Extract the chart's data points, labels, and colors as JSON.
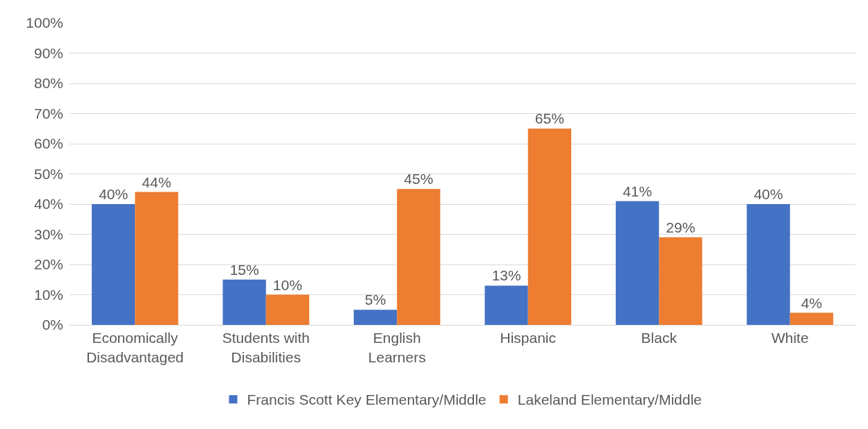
{
  "chart_data": {
    "type": "bar",
    "categories": [
      "Economically Disadvantaged",
      "Students with Disabilities",
      "English Learners",
      "Hispanic",
      "Black",
      "White"
    ],
    "series": [
      {
        "name": "Francis Scott Key Elementary/Middle",
        "color": "#4472c4",
        "values": [
          40,
          15,
          5,
          13,
          41,
          40
        ],
        "value_labels": [
          "40%",
          "15%",
          "5%",
          "13%",
          "41%",
          "40%"
        ]
      },
      {
        "name": "Lakeland Elementary/Middle",
        "color": "#ed7d31",
        "values": [
          44,
          10,
          45,
          65,
          29,
          4
        ],
        "value_labels": [
          "44%",
          "10%",
          "45%",
          "65%",
          "29%",
          "4%"
        ]
      }
    ],
    "ylim": [
      0,
      100
    ],
    "yticks": [
      {
        "value": 0,
        "label": "0%"
      },
      {
        "value": 10,
        "label": "10%"
      },
      {
        "value": 20,
        "label": "20%"
      },
      {
        "value": 30,
        "label": "30%"
      },
      {
        "value": 40,
        "label": "40%"
      },
      {
        "value": 50,
        "label": "50%"
      },
      {
        "value": 60,
        "label": "60%"
      },
      {
        "value": 70,
        "label": "70%"
      },
      {
        "value": 80,
        "label": "80%"
      },
      {
        "value": 90,
        "label": "90%"
      },
      {
        "value": 100,
        "label": "100%"
      }
    ],
    "grid": "y",
    "legend": "bottom"
  }
}
